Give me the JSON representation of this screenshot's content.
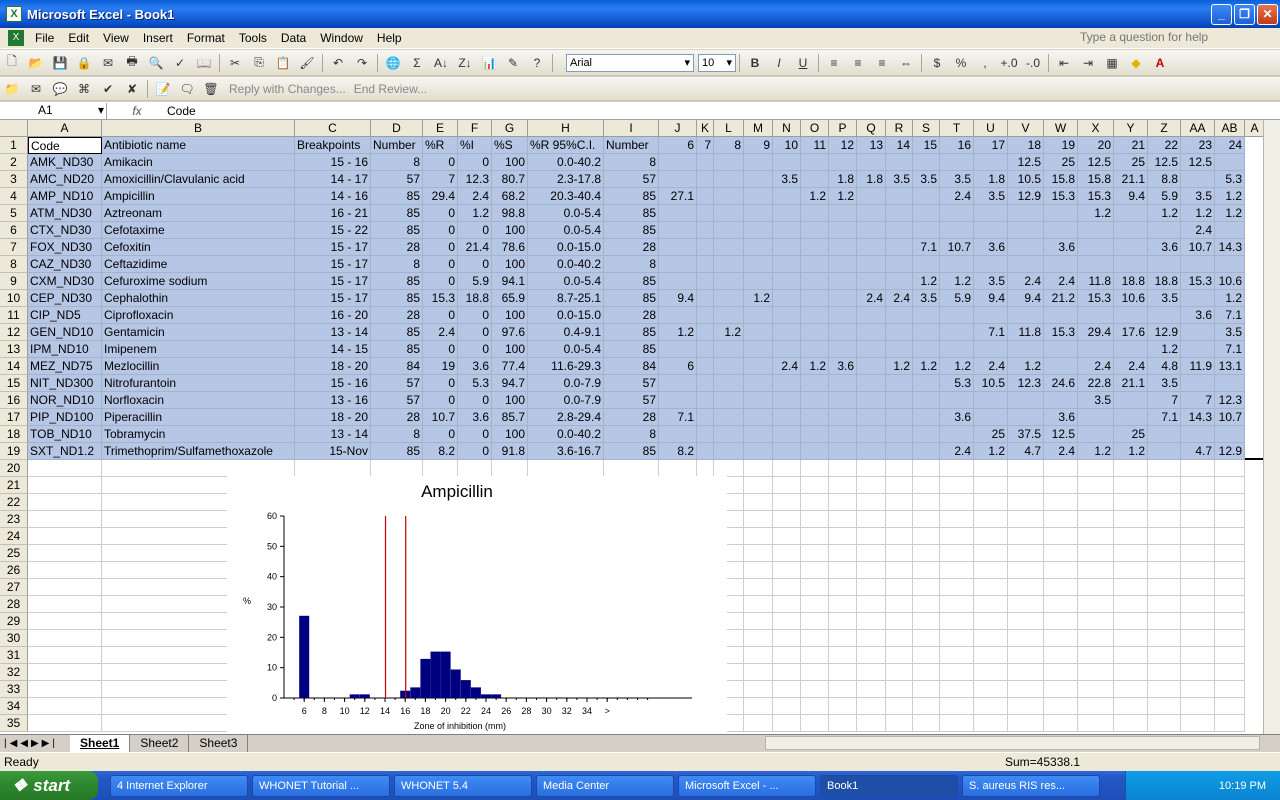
{
  "window": {
    "title": "Microsoft Excel - Book1"
  },
  "menu": [
    "File",
    "Edit",
    "View",
    "Insert",
    "Format",
    "Tools",
    "Data",
    "Window",
    "Help"
  ],
  "help_placeholder": "Type a question for help",
  "toolbar": {
    "font": "Arial",
    "size": "10",
    "reply_label": "Reply with Changes...",
    "end_review_label": "End Review..."
  },
  "formula_bar": {
    "cell_ref": "A1",
    "fx": "fx",
    "content": "Code"
  },
  "columns": [
    "A",
    "B",
    "C",
    "D",
    "E",
    "F",
    "G",
    "H",
    "I",
    "J",
    "K",
    "L",
    "M",
    "N",
    "O",
    "P",
    "Q",
    "R",
    "S",
    "T",
    "U",
    "V",
    "W",
    "X",
    "Y",
    "Z",
    "AA",
    "AB",
    "A"
  ],
  "row_numbers": [
    "1",
    "2",
    "3",
    "4",
    "5",
    "6",
    "7",
    "8",
    "9",
    "10",
    "11",
    "12",
    "13",
    "14",
    "15",
    "16",
    "17",
    "18",
    "19",
    "20",
    "21",
    "22",
    "23",
    "24",
    "25",
    "26",
    "27",
    "28",
    "29",
    "30",
    "31",
    "32",
    "33",
    "34",
    "35"
  ],
  "headers": [
    "Code",
    "Antibiotic name",
    "Breakpoints",
    "Number",
    "%R",
    "%I",
    "%S",
    "%R 95%C.I.",
    "Number",
    "6",
    "7",
    "8",
    "9",
    "10",
    "11",
    "12",
    "13",
    "14",
    "15",
    "16",
    "17",
    "18",
    "19",
    "20",
    "21",
    "22",
    "23",
    "24"
  ],
  "rows": [
    [
      "AMK_ND30",
      "Amikacin",
      "15 - 16",
      "8",
      "0",
      "0",
      "100",
      "0.0-40.2",
      "8",
      "",
      "",
      "",
      "",
      "",
      "",
      "",
      "",
      "",
      "",
      "",
      "",
      "12.5",
      "25",
      "12.5",
      "25",
      "12.5",
      "12.5",
      ""
    ],
    [
      "AMC_ND20",
      "Amoxicillin/Clavulanic acid",
      "14 - 17",
      "57",
      "7",
      "12.3",
      "80.7",
      "2.3-17.8",
      "57",
      "",
      "",
      "",
      "",
      "3.5",
      "",
      "1.8",
      "1.8",
      "3.5",
      "3.5",
      "3.5",
      "1.8",
      "10.5",
      "15.8",
      "15.8",
      "21.1",
      "8.8",
      "",
      "5.3"
    ],
    [
      "AMP_ND10",
      "Ampicillin",
      "14 - 16",
      "85",
      "29.4",
      "2.4",
      "68.2",
      "20.3-40.4",
      "85",
      "27.1",
      "",
      "",
      "",
      "",
      "1.2",
      "1.2",
      "",
      "",
      "",
      "2.4",
      "3.5",
      "12.9",
      "15.3",
      "15.3",
      "9.4",
      "5.9",
      "3.5",
      "1.2"
    ],
    [
      "ATM_ND30",
      "Aztreonam",
      "16 - 21",
      "85",
      "0",
      "1.2",
      "98.8",
      "0.0-5.4",
      "85",
      "",
      "",
      "",
      "",
      "",
      "",
      "",
      "",
      "",
      "",
      "",
      "",
      "",
      "",
      "1.2",
      "",
      "1.2",
      "1.2",
      "1.2"
    ],
    [
      "CTX_ND30",
      "Cefotaxime",
      "15 - 22",
      "85",
      "0",
      "0",
      "100",
      "0.0-5.4",
      "85",
      "",
      "",
      "",
      "",
      "",
      "",
      "",
      "",
      "",
      "",
      "",
      "",
      "",
      "",
      "",
      "",
      "",
      "2.4",
      ""
    ],
    [
      "FOX_ND30",
      "Cefoxitin",
      "15 - 17",
      "28",
      "0",
      "21.4",
      "78.6",
      "0.0-15.0",
      "28",
      "",
      "",
      "",
      "",
      "",
      "",
      "",
      "",
      "",
      "7.1",
      "10.7",
      "3.6",
      "",
      "3.6",
      "",
      "",
      "3.6",
      "10.7",
      "14.3"
    ],
    [
      "CAZ_ND30",
      "Ceftazidime",
      "15 - 17",
      "8",
      "0",
      "0",
      "100",
      "0.0-40.2",
      "8",
      "",
      "",
      "",
      "",
      "",
      "",
      "",
      "",
      "",
      "",
      "",
      "",
      "",
      "",
      "",
      "",
      "",
      "",
      ""
    ],
    [
      "CXM_ND30",
      "Cefuroxime sodium",
      "15 - 17",
      "85",
      "0",
      "5.9",
      "94.1",
      "0.0-5.4",
      "85",
      "",
      "",
      "",
      "",
      "",
      "",
      "",
      "",
      "",
      "1.2",
      "1.2",
      "3.5",
      "2.4",
      "2.4",
      "11.8",
      "18.8",
      "18.8",
      "15.3",
      "10.6"
    ],
    [
      "CEP_ND30",
      "Cephalothin",
      "15 - 17",
      "85",
      "15.3",
      "18.8",
      "65.9",
      "8.7-25.1",
      "85",
      "9.4",
      "",
      "",
      "1.2",
      "",
      "",
      "",
      "2.4",
      "2.4",
      "3.5",
      "5.9",
      "9.4",
      "9.4",
      "21.2",
      "15.3",
      "10.6",
      "3.5",
      "",
      "1.2"
    ],
    [
      "CIP_ND5",
      "Ciprofloxacin",
      "16 - 20",
      "28",
      "0",
      "0",
      "100",
      "0.0-15.0",
      "28",
      "",
      "",
      "",
      "",
      "",
      "",
      "",
      "",
      "",
      "",
      "",
      "",
      "",
      "",
      "",
      "",
      "",
      "3.6",
      "7.1"
    ],
    [
      "GEN_ND10",
      "Gentamicin",
      "13 - 14",
      "85",
      "2.4",
      "0",
      "97.6",
      "0.4-9.1",
      "85",
      "1.2",
      "",
      "1.2",
      "",
      "",
      "",
      "",
      "",
      "",
      "",
      "",
      "7.1",
      "11.8",
      "15.3",
      "29.4",
      "17.6",
      "12.9",
      "",
      "3.5"
    ],
    [
      "IPM_ND10",
      "Imipenem",
      "14 - 15",
      "85",
      "0",
      "0",
      "100",
      "0.0-5.4",
      "85",
      "",
      "",
      "",
      "",
      "",
      "",
      "",
      "",
      "",
      "",
      "",
      "",
      "",
      "",
      "",
      "",
      "1.2",
      "",
      "7.1"
    ],
    [
      "MEZ_ND75",
      "Mezlocillin",
      "18 - 20",
      "84",
      "19",
      "3.6",
      "77.4",
      "11.6-29.3",
      "84",
      "6",
      "",
      "",
      "",
      "2.4",
      "1.2",
      "3.6",
      "",
      "1.2",
      "1.2",
      "1.2",
      "2.4",
      "1.2",
      "",
      "2.4",
      "2.4",
      "4.8",
      "11.9",
      "13.1"
    ],
    [
      "NIT_ND300",
      "Nitrofurantoin",
      "15 - 16",
      "57",
      "0",
      "5.3",
      "94.7",
      "0.0-7.9",
      "57",
      "",
      "",
      "",
      "",
      "",
      "",
      "",
      "",
      "",
      "",
      "5.3",
      "10.5",
      "12.3",
      "24.6",
      "22.8",
      "21.1",
      "3.5",
      "",
      ""
    ],
    [
      "NOR_ND10",
      "Norfloxacin",
      "13 - 16",
      "57",
      "0",
      "0",
      "100",
      "0.0-7.9",
      "57",
      "",
      "",
      "",
      "",
      "",
      "",
      "",
      "",
      "",
      "",
      "",
      "",
      "",
      "",
      "3.5",
      "",
      "7",
      "7",
      "12.3"
    ],
    [
      "PIP_ND100",
      "Piperacillin",
      "18 - 20",
      "28",
      "10.7",
      "3.6",
      "85.7",
      "2.8-29.4",
      "28",
      "7.1",
      "",
      "",
      "",
      "",
      "",
      "",
      "",
      "",
      "",
      "3.6",
      "",
      "",
      "3.6",
      "",
      "",
      "7.1",
      "14.3",
      "10.7"
    ],
    [
      "TOB_ND10",
      "Tobramycin",
      "13 - 14",
      "8",
      "0",
      "0",
      "100",
      "0.0-40.2",
      "8",
      "",
      "",
      "",
      "",
      "",
      "",
      "",
      "",
      "",
      "",
      "",
      "25",
      "37.5",
      "12.5",
      "",
      "25",
      "",
      "",
      ""
    ],
    [
      "SXT_ND1.2",
      "Trimethoprim/Sulfamethoxazole",
      "15-Nov",
      "85",
      "8.2",
      "0",
      "91.8",
      "3.6-16.7",
      "85",
      "8.2",
      "",
      "",
      "",
      "",
      "",
      "",
      "",
      "",
      "",
      "2.4",
      "1.2",
      "4.7",
      "2.4",
      "1.2",
      "1.2",
      "",
      "4.7",
      "12.9"
    ]
  ],
  "chart_data": {
    "type": "bar",
    "title": "Ampicillin",
    "xlabel": "Zone of inhibition (mm)",
    "ylabel": "%",
    "ylim": [
      0,
      60
    ],
    "yticks": [
      "0",
      "10",
      "20",
      "30",
      "40",
      "50",
      "60"
    ],
    "xticks": [
      "6",
      "8",
      "10",
      "12",
      "14",
      "16",
      "18",
      "20",
      "22",
      "24",
      "26",
      "28",
      "30",
      "32",
      "34",
      ">"
    ],
    "categories": [
      "6",
      "11",
      "12",
      "16",
      "17",
      "18",
      "19",
      "20",
      "21",
      "22",
      "23",
      "24",
      "25"
    ],
    "values": [
      27.1,
      1.2,
      1.2,
      2.4,
      3.5,
      12.9,
      15.3,
      15.3,
      9.4,
      5.9,
      3.5,
      1.2,
      1.2
    ],
    "breakpoint_lines": [
      14,
      16
    ],
    "bar_color": "#000080",
    "line_color": "#cc0000"
  },
  "sheets": [
    "Sheet1",
    "Sheet2",
    "Sheet3"
  ],
  "status": {
    "ready": "Ready",
    "sum": "Sum=45338.1"
  },
  "taskbar": {
    "start": "start",
    "items": [
      "4 Internet Explorer",
      "WHONET Tutorial ...",
      "WHONET 5.4",
      "Media Center",
      "Microsoft Excel - ...",
      "Book1",
      "S. aureus RIS res..."
    ],
    "clock": "10:19 PM"
  }
}
